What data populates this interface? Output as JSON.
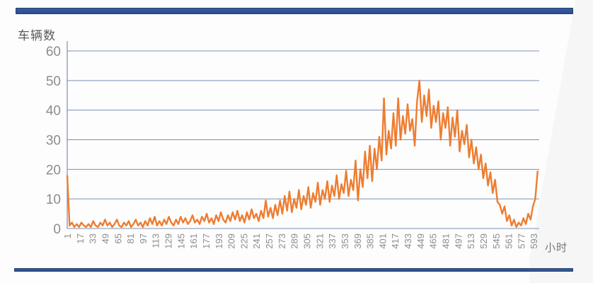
{
  "colors": {
    "line": "#ED7D31",
    "grid": "#7E8FB4",
    "axis": "#7E8FB4",
    "tick_text": "#8C8C8C",
    "title_text": "#595959",
    "divider_bar": "#2F5496"
  },
  "chart_data": {
    "type": "line",
    "title": "",
    "xlabel": "小时",
    "ylabel": "车辆数",
    "legend": "none",
    "grid": "horizontal",
    "ylim": [
      0,
      60
    ],
    "xlim": [
      1,
      600
    ],
    "y_ticks": [
      0,
      10,
      20,
      30,
      40,
      50,
      60
    ],
    "x_ticks": [
      1,
      17,
      33,
      49,
      65,
      81,
      97,
      113,
      129,
      145,
      161,
      177,
      193,
      209,
      225,
      241,
      257,
      273,
      289,
      305,
      321,
      337,
      353,
      369,
      385,
      401,
      417,
      433,
      449,
      465,
      481,
      497,
      513,
      529,
      545,
      561,
      577,
      593
    ],
    "x_start": 1,
    "x_step": 3,
    "series": [
      {
        "name": "车辆数",
        "values": [
          18,
          1,
          2,
          0.5,
          1.5,
          0.5,
          2,
          1,
          0.5,
          1.5,
          0.5,
          2.5,
          1,
          0.5,
          2,
          1,
          3,
          1,
          2,
          0.5,
          1.5,
          3,
          1,
          0.5,
          2,
          1,
          2.5,
          0.5,
          1.5,
          3,
          1,
          2,
          0.5,
          2.5,
          1,
          3.5,
          1.5,
          4,
          1,
          2.5,
          1,
          3,
          1.5,
          4,
          2,
          1,
          3,
          1.5,
          4,
          2,
          3.5,
          1.5,
          2.5,
          4.5,
          2,
          3,
          1.5,
          4,
          2.5,
          5,
          2,
          3.5,
          1.5,
          4.5,
          2.5,
          5.5,
          3,
          2,
          4.5,
          2.5,
          5.5,
          3,
          6,
          2.5,
          4.5,
          2,
          5.5,
          3,
          6.5,
          3.5,
          5,
          2.5,
          6,
          3.5,
          9.5,
          4,
          7,
          3.5,
          8,
          4.5,
          9.5,
          5,
          11,
          6,
          12.5,
          5.5,
          10,
          7,
          13,
          6.5,
          11,
          8,
          14,
          7,
          12,
          9,
          15.5,
          8,
          13,
          10,
          16,
          9,
          14.5,
          11,
          18,
          10,
          15,
          12,
          19.5,
          11,
          16.5,
          13,
          23,
          9.5,
          20,
          14,
          26,
          17,
          28,
          16,
          27,
          20,
          31,
          23,
          44,
          25,
          33,
          27,
          39,
          28,
          44,
          30,
          38,
          32,
          42,
          33,
          37,
          28,
          43,
          50,
          36,
          45,
          38,
          47,
          34,
          41.5,
          36,
          43,
          30,
          39,
          34,
          41,
          28,
          37.5,
          31,
          40,
          26,
          33,
          28.5,
          35,
          24,
          30,
          22,
          27.5,
          20,
          25,
          17,
          22,
          14.5,
          19,
          12,
          16.5,
          9,
          8,
          5,
          7.5,
          2.5,
          4.5,
          1,
          3,
          0.5,
          2,
          1,
          3.5,
          1.5,
          5,
          3,
          7.5,
          10,
          19.5
        ]
      }
    ]
  }
}
